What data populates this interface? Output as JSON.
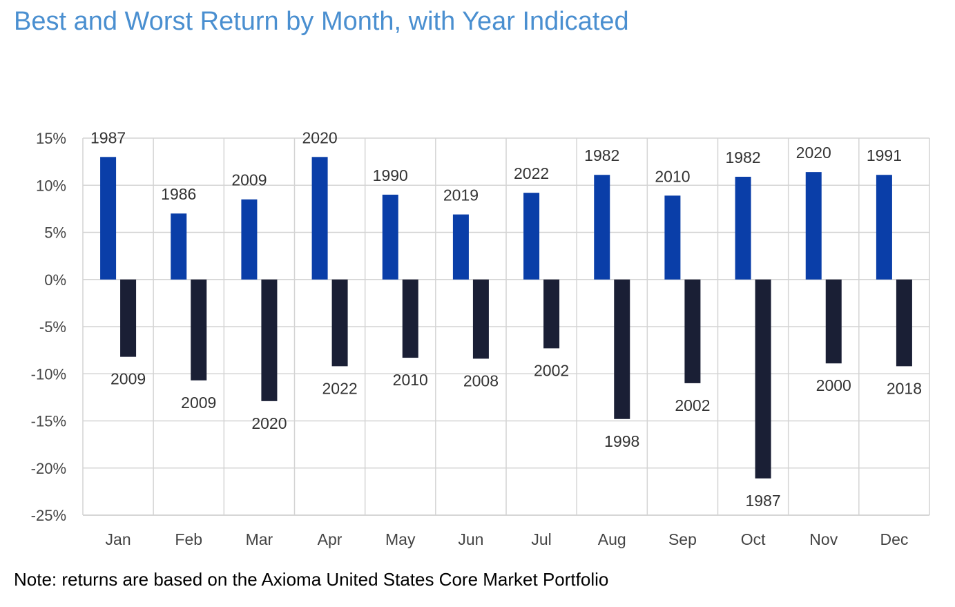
{
  "chart_data": {
    "type": "bar",
    "title": "Best and Worst Return by Month, with Year Indicated",
    "note": "Note: returns are based on the Axioma United States Core Market Portfolio",
    "categories": [
      "Jan",
      "Feb",
      "Mar",
      "Apr",
      "May",
      "Jun",
      "Jul",
      "Aug",
      "Sep",
      "Oct",
      "Nov",
      "Dec"
    ],
    "ylim": [
      -25,
      15
    ],
    "yticks": [
      15,
      10,
      5,
      0,
      -5,
      -10,
      -15,
      -20,
      -25
    ],
    "ytick_labels": [
      "15%",
      "10%",
      "5%",
      "0%",
      "-5%",
      "-10%",
      "-15%",
      "-20%",
      "-25%"
    ],
    "grid": true,
    "series": [
      {
        "color": "#0a3ea8",
        "values": [
          13.0,
          7.0,
          8.5,
          13.0,
          9.0,
          6.9,
          9.2,
          11.1,
          8.9,
          10.9,
          11.4,
          11.1
        ],
        "labels": [
          "1987",
          "1986",
          "2009",
          "2020",
          "1990",
          "2019",
          "2022",
          "1982",
          "2010",
          "1982",
          "2020",
          "1991"
        ]
      },
      {
        "color": "#1a1f35",
        "values": [
          -8.2,
          -10.7,
          -12.9,
          -9.2,
          -8.3,
          -8.4,
          -7.3,
          -14.8,
          -11.0,
          -21.1,
          -8.9,
          -9.2
        ],
        "labels": [
          "2009",
          "2009",
          "2020",
          "2022",
          "2010",
          "2008",
          "2002",
          "1998",
          "2002",
          "1987",
          "2000",
          "2018"
        ]
      }
    ]
  }
}
